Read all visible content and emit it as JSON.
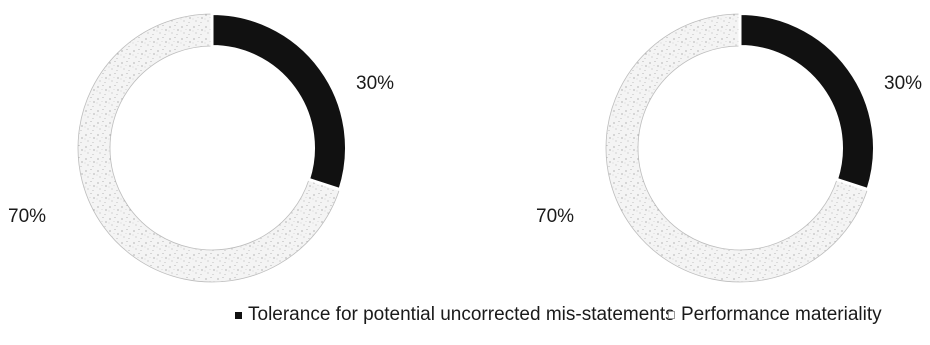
{
  "chart_data": [
    {
      "type": "pie",
      "slices": [
        {
          "name": "Tolerance for potential uncorrected mis-statements",
          "value": 30,
          "label": "30%"
        },
        {
          "name": "Performance materiality",
          "value": 70,
          "label": "70%"
        }
      ]
    },
    {
      "type": "pie",
      "slices": [
        {
          "name": "Tolerance for potential uncorrected mis-statements",
          "value": 30,
          "label": "30%"
        },
        {
          "name": "Performance materiality",
          "value": 70,
          "label": "70%"
        }
      ]
    }
  ],
  "legend": {
    "items": [
      {
        "label": "Tolerance for potential uncorrected mis-statements",
        "color": "#111111"
      },
      {
        "label": "Performance materiality",
        "color": "#f2f2f2"
      }
    ]
  },
  "colors": {
    "dark_slice": "#111111",
    "light_slice": "#f3f3f3",
    "light_speckle": "#9a9a9a"
  }
}
